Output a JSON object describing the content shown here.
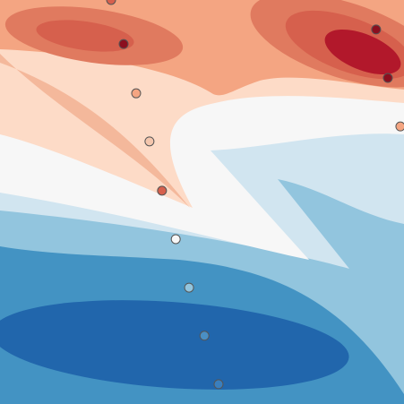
{
  "chart_data": {
    "type": "scatter",
    "x": [
      0.275,
      0.306,
      0.337,
      0.37,
      0.401,
      0.435,
      0.468,
      0.506,
      0.541,
      0.931,
      0.96,
      0.991
    ],
    "series": [
      {
        "values": [
          1.0,
          0.891,
          0.769,
          0.65,
          0.528,
          0.408,
          0.288,
          0.169,
          0.049,
          0.927,
          0.807,
          0.687
        ],
        "colors": [
          "#d6604d",
          "#8b0f1f",
          "#f4a582",
          "#f4c6ad",
          "#d6604d",
          "#f7f7f7",
          "#92c5de",
          "#4a8fc4",
          "#3a7fbe",
          "#8b0f1f",
          "#8b0f1f",
          "#f4a582"
        ]
      }
    ],
    "xlim": [
      0,
      1
    ],
    "ylim": [
      0,
      1
    ]
  }
}
